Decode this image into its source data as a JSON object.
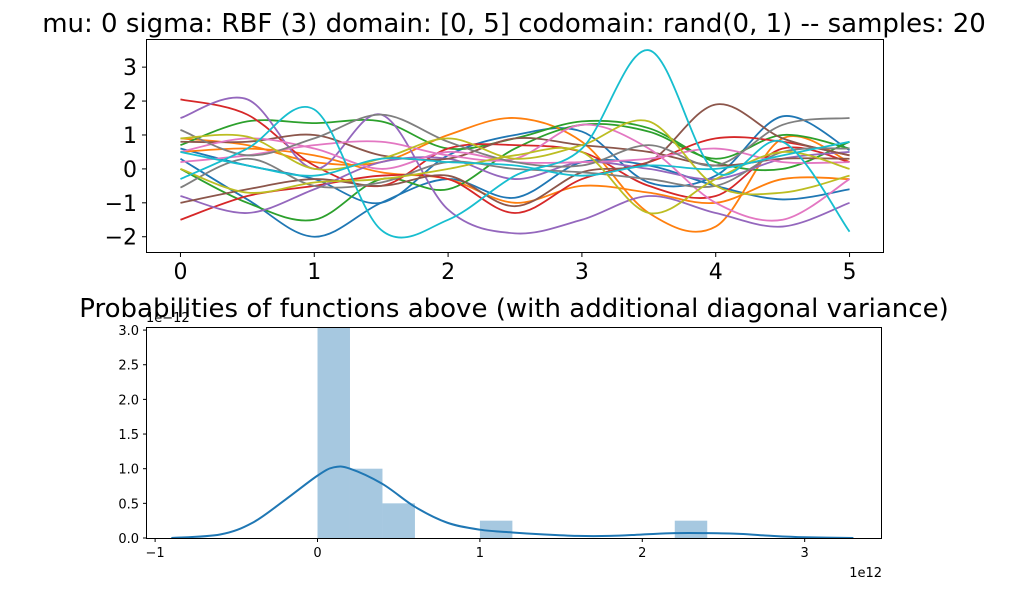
{
  "chart_data": [
    {
      "type": "line",
      "title": "mu: 0 sigma: RBF (3) domain: [0, 5] codomain: rand(0, 1) -- samples: 20",
      "xlabel": "",
      "ylabel": "",
      "xlim": [
        -0.25,
        5.25
      ],
      "ylim": [
        -2.45,
        3.8
      ],
      "xticks": [
        0,
        1,
        2,
        3,
        4,
        5
      ],
      "xtick_labels": [
        "0",
        "1",
        "2",
        "3",
        "4",
        "5"
      ],
      "yticks": [
        -2,
        -1,
        0,
        1,
        2,
        3
      ],
      "ytick_labels": [
        "−2",
        "−1",
        "0",
        "1",
        "2",
        "3"
      ],
      "grid": false,
      "legend": "none",
      "x": [
        0,
        0.5,
        1,
        1.5,
        2,
        2.5,
        3,
        3.5,
        4,
        4.5,
        5
      ],
      "series": [
        {
          "color": "#1f77b4",
          "values": [
            0.6,
            0.1,
            -0.3,
            -1.0,
            0.4,
            1.0,
            1.1,
            -0.4,
            -0.2,
            1.55,
            0.55
          ]
        },
        {
          "color": "#1f77b4",
          "values": [
            0.3,
            -0.9,
            -2.0,
            -1.0,
            -0.3,
            -0.85,
            0.2,
            0.1,
            -0.5,
            -0.9,
            -0.6
          ]
        },
        {
          "color": "#ff7f0e",
          "values": [
            0.9,
            0.7,
            0.2,
            0.2,
            1.0,
            1.5,
            0.8,
            -1.3,
            -1.7,
            0.9,
            0.2
          ]
        },
        {
          "color": "#ff7f0e",
          "values": [
            0.5,
            0.6,
            0.4,
            -0.1,
            -0.3,
            -1.0,
            -0.5,
            -0.7,
            -1.0,
            -0.3,
            -0.3
          ]
        },
        {
          "color": "#2ca02c",
          "values": [
            0.7,
            1.4,
            1.35,
            1.4,
            0.6,
            0.9,
            1.4,
            1.2,
            0.2,
            0.0,
            0.8
          ]
        },
        {
          "color": "#2ca02c",
          "values": [
            0.0,
            -1.0,
            -1.5,
            -0.3,
            -0.6,
            0.6,
            1.3,
            1.1,
            0.3,
            1.0,
            0.6
          ]
        },
        {
          "color": "#d62728",
          "values": [
            2.05,
            1.6,
            0.1,
            -0.5,
            0.6,
            0.7,
            0.5,
            -0.5,
            -0.8,
            0.6,
            0.2
          ]
        },
        {
          "color": "#d62728",
          "values": [
            -1.5,
            -0.8,
            -0.5,
            -0.2,
            -0.3,
            -1.3,
            -0.3,
            0.2,
            0.9,
            0.8,
            0.4
          ]
        },
        {
          "color": "#9467bd",
          "values": [
            1.5,
            2.05,
            0.0,
            1.6,
            -1.2,
            -1.9,
            -1.5,
            -0.8,
            -1.3,
            -1.7,
            -1.0
          ]
        },
        {
          "color": "#9467bd",
          "values": [
            -0.8,
            -1.3,
            -0.6,
            0.2,
            0.3,
            -0.3,
            0.2,
            0.0,
            -0.3,
            0.3,
            0.5
          ]
        },
        {
          "color": "#8c564b",
          "values": [
            -1.0,
            -0.6,
            -0.3,
            -0.5,
            -0.2,
            -1.1,
            -0.1,
            0.2,
            1.9,
            0.9,
            0.4
          ]
        },
        {
          "color": "#8c564b",
          "values": [
            0.8,
            0.8,
            1.0,
            0.4,
            0.3,
            0.9,
            0.7,
            0.5,
            0.1,
            0.3,
            0.3
          ]
        },
        {
          "color": "#e377c2",
          "values": [
            0.2,
            0.4,
            0.7,
            0.8,
            0.4,
            0.3,
            1.3,
            0.6,
            -1.0,
            -1.5,
            -0.3
          ]
        },
        {
          "color": "#e377c2",
          "values": [
            0.5,
            0.9,
            0.6,
            0.0,
            0.5,
            0.2,
            0.2,
            0.3,
            0.6,
            0.2,
            0.2
          ]
        },
        {
          "color": "#7f7f7f",
          "values": [
            1.15,
            0.4,
            0.9,
            1.6,
            0.8,
            0.2,
            0.1,
            0.7,
            0.1,
            1.3,
            1.5
          ]
        },
        {
          "color": "#7f7f7f",
          "values": [
            -0.55,
            0.3,
            -0.5,
            -0.4,
            0.2,
            0.0,
            -0.1,
            -0.3,
            -0.5,
            0.5,
            0.6
          ]
        },
        {
          "color": "#bcbd22",
          "values": [
            0.9,
            0.95,
            0.0,
            0.3,
            0.9,
            0.3,
            0.7,
            1.4,
            -0.5,
            -0.7,
            -0.2
          ]
        },
        {
          "color": "#bcbd22",
          "values": [
            0.0,
            -0.7,
            -0.4,
            -0.3,
            0.0,
            0.4,
            0.5,
            -1.3,
            -0.3,
            0.5,
            0.0
          ]
        },
        {
          "color": "#17becf",
          "values": [
            -0.3,
            0.6,
            1.75,
            -1.8,
            -1.5,
            -0.2,
            0.6,
            3.5,
            -0.1,
            0.8,
            -1.85
          ]
        },
        {
          "color": "#17becf",
          "values": [
            0.5,
            0.1,
            -0.2,
            0.3,
            0.2,
            0.1,
            -0.2,
            0.1,
            0.0,
            0.4,
            0.8
          ]
        }
      ]
    },
    {
      "type": "bar",
      "title": "Probabilities of functions above (with additional diagonal variance)",
      "xlabel": "",
      "ylabel": "",
      "xlim": [
        -1.05,
        3.47
      ],
      "ylim": [
        0,
        3.03
      ],
      "x_offset_text": "1e12",
      "y_offset_text": "1e−12",
      "xticks": [
        -1,
        0,
        1,
        2,
        3
      ],
      "xtick_labels": [
        "−1",
        "0",
        "1",
        "2",
        "3"
      ],
      "yticks": [
        0.0,
        0.5,
        1.0,
        1.5,
        2.0,
        2.5,
        3.0
      ],
      "ytick_labels": [
        "0.0",
        "0.5",
        "1.0",
        "1.5",
        "2.0",
        "2.5",
        "3.0"
      ],
      "grid": false,
      "legend": "none",
      "bar_color": "#a6c8e0",
      "kde_color": "#1f77b4",
      "bins": [
        {
          "x0": 0.0,
          "x1": 0.2,
          "value": 3.03
        },
        {
          "x0": 0.2,
          "x1": 0.4,
          "value": 1.0
        },
        {
          "x0": 0.4,
          "x1": 0.6,
          "value": 0.5
        },
        {
          "x0": 1.0,
          "x1": 1.2,
          "value": 0.25
        },
        {
          "x0": 2.2,
          "x1": 2.4,
          "value": 0.25
        }
      ],
      "kde": {
        "x": [
          -0.9,
          -0.6,
          -0.4,
          -0.2,
          0.0,
          0.1,
          0.2,
          0.4,
          0.6,
          0.8,
          1.0,
          1.2,
          1.4,
          1.6,
          1.8,
          2.0,
          2.2,
          2.4,
          2.6,
          2.8,
          3.0,
          3.3
        ],
        "y": [
          0.0,
          0.05,
          0.22,
          0.55,
          0.9,
          1.02,
          1.0,
          0.78,
          0.45,
          0.22,
          0.12,
          0.08,
          0.05,
          0.03,
          0.03,
          0.05,
          0.07,
          0.07,
          0.06,
          0.03,
          0.01,
          0.0
        ]
      }
    }
  ]
}
